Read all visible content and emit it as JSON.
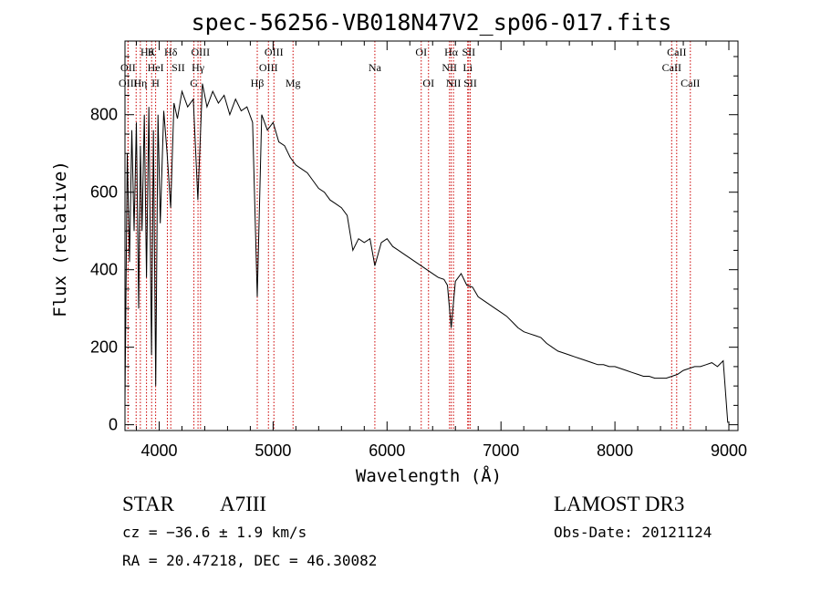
{
  "chart_data": {
    "type": "line",
    "title": "spec-56256-VB018N47V2_sp06-017.fits",
    "xlabel": "Wavelength (Å)",
    "ylabel": "Flux (relative)",
    "xlim": [
      3700,
      9080
    ],
    "ylim": [
      -15,
      990
    ],
    "xticks": [
      4000,
      5000,
      6000,
      7000,
      8000,
      9000
    ],
    "xtick_labels": [
      "4000",
      "5000",
      "6000",
      "7000",
      "8000",
      "9000"
    ],
    "yticks": [
      0,
      200,
      400,
      600,
      800
    ],
    "ytick_labels": [
      "0",
      "200",
      "400",
      "600",
      "800"
    ],
    "series": [
      {
        "name": "flux",
        "x": [
          3700,
          3720,
          3740,
          3760,
          3780,
          3800,
          3820,
          3835,
          3850,
          3870,
          3889,
          3910,
          3933,
          3950,
          3970,
          3990,
          4010,
          4040,
          4070,
          4101,
          4130,
          4160,
          4200,
          4250,
          4300,
          4340,
          4380,
          4420,
          4470,
          4520,
          4570,
          4620,
          4670,
          4720,
          4770,
          4820,
          4861,
          4900,
          4950,
          5000,
          5050,
          5100,
          5150,
          5200,
          5250,
          5300,
          5350,
          5400,
          5450,
          5500,
          5550,
          5600,
          5650,
          5700,
          5750,
          5800,
          5850,
          5893,
          5950,
          6000,
          6050,
          6100,
          6150,
          6200,
          6250,
          6300,
          6350,
          6400,
          6450,
          6500,
          6530,
          6563,
          6600,
          6650,
          6700,
          6750,
          6800,
          6850,
          6900,
          6950,
          7000,
          7050,
          7100,
          7150,
          7200,
          7250,
          7300,
          7350,
          7400,
          7450,
          7500,
          7550,
          7600,
          7650,
          7700,
          7750,
          7800,
          7850,
          7900,
          7950,
          8000,
          8050,
          8100,
          8150,
          8200,
          8250,
          8300,
          8350,
          8400,
          8450,
          8500,
          8550,
          8600,
          8650,
          8700,
          8750,
          8800,
          8850,
          8900,
          8950,
          8990
        ],
        "y": [
          60,
          700,
          420,
          760,
          500,
          780,
          300,
          720,
          500,
          800,
          380,
          820,
          180,
          760,
          100,
          800,
          520,
          810,
          700,
          560,
          830,
          790,
          860,
          820,
          840,
          580,
          880,
          820,
          860,
          830,
          850,
          800,
          840,
          810,
          820,
          780,
          330,
          800,
          760,
          780,
          730,
          720,
          690,
          670,
          660,
          650,
          630,
          610,
          600,
          580,
          570,
          560,
          540,
          450,
          480,
          470,
          480,
          410,
          470,
          480,
          460,
          450,
          440,
          430,
          420,
          410,
          400,
          390,
          380,
          375,
          360,
          250,
          370,
          390,
          360,
          355,
          330,
          320,
          310,
          300,
          290,
          280,
          265,
          250,
          240,
          235,
          230,
          225,
          210,
          200,
          190,
          185,
          180,
          175,
          170,
          165,
          160,
          155,
          155,
          150,
          150,
          145,
          140,
          135,
          130,
          125,
          125,
          120,
          120,
          120,
          125,
          130,
          140,
          145,
          150,
          150,
          155,
          160,
          150,
          165,
          5
        ]
      }
    ],
    "spectral_lines": [
      {
        "label": "Hθ",
        "wave": 3798,
        "row": 1
      },
      {
        "label": "OII",
        "wave": 3727,
        "row": 2
      },
      {
        "label": "OIII",
        "wave": 3727,
        "row": 3
      },
      {
        "label": "Hη",
        "wave": 3835,
        "row": 3
      },
      {
        "label": "HeI",
        "wave": 3889,
        "row": 2
      },
      {
        "label": "K",
        "wave": 3934,
        "row": 1
      },
      {
        "label": "H",
        "wave": 3969,
        "row": 3
      },
      {
        "label": "Hδ",
        "wave": 4102,
        "row": 1
      },
      {
        "label": "SII",
        "wave": 4072,
        "row": 2
      },
      {
        "label": "OIII",
        "wave": 4363,
        "row": 1
      },
      {
        "label": "Hγ",
        "wave": 4341,
        "row": 2
      },
      {
        "label": "G",
        "wave": 4305,
        "row": 3
      },
      {
        "label": "OIII",
        "wave": 5007,
        "row": 1
      },
      {
        "label": "OIII",
        "wave": 4959,
        "row": 2
      },
      {
        "label": "Hβ",
        "wave": 4861,
        "row": 3
      },
      {
        "label": "Mg",
        "wave": 5175,
        "row": 3
      },
      {
        "label": "Na",
        "wave": 5893,
        "row": 2
      },
      {
        "label": "OI",
        "wave": 6300,
        "row": 1
      },
      {
        "label": "OI",
        "wave": 6364,
        "row": 3
      },
      {
        "label": "Hα",
        "wave": 6563,
        "row": 1
      },
      {
        "label": "NII",
        "wave": 6548,
        "row": 2
      },
      {
        "label": "NII",
        "wave": 6583,
        "row": 3
      },
      {
        "label": "SII",
        "wave": 6717,
        "row": 1
      },
      {
        "label": "Li",
        "wave": 6708,
        "row": 2
      },
      {
        "label": "SII",
        "wave": 6731,
        "row": 3
      },
      {
        "label": "CaII",
        "wave": 8542,
        "row": 1
      },
      {
        "label": "CaII",
        "wave": 8498,
        "row": 2
      },
      {
        "label": "CaII",
        "wave": 8662,
        "row": 3
      }
    ]
  },
  "info": {
    "object_type": "STAR",
    "subclass": "A7III",
    "survey": "LAMOST DR3",
    "cz": "cz = −36.6 ± 1.9 km/s",
    "obs_date": "Obs-Date: 20121124",
    "coords": "RA =  20.47218, DEC =  46.30082"
  },
  "colors": {
    "line": "#000000",
    "marker": "#cc0000",
    "background": "#ffffff"
  }
}
